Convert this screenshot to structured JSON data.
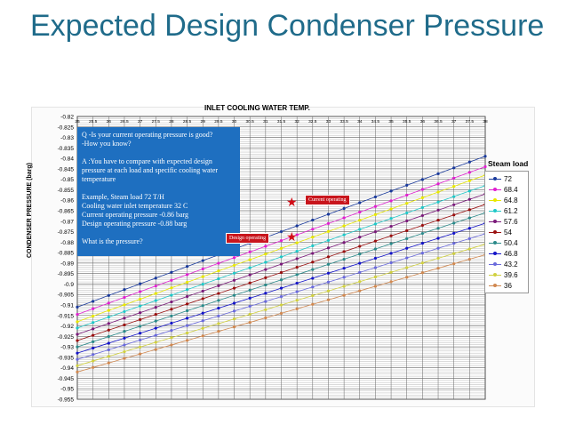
{
  "slide": {
    "title": "Expected Design Condenser Pressure"
  },
  "chart_data": {
    "type": "line",
    "title": "INLET COOLING WATER TEMP.",
    "xlabel": "",
    "ylabel": "CONDENSER PRESSURE (barg)",
    "x": [
      25,
      25.5,
      26,
      26.5,
      27,
      27.5,
      28,
      28.5,
      29,
      29.5,
      30,
      30.5,
      31,
      31.5,
      32,
      32.5,
      33,
      33.5,
      34,
      34.5,
      35,
      35.5,
      36,
      36.5,
      37,
      37.5,
      38
    ],
    "x_tick_labels": [
      "25",
      "25.5",
      "26",
      "26.5",
      "27",
      "27.5",
      "28",
      "28.5",
      "29",
      "29.5",
      "30",
      "30.5",
      "31",
      "31.5",
      "32",
      "32.5",
      "33",
      "33.5",
      "34",
      "34.5",
      "35",
      "35.5",
      "36",
      "36.5",
      "37",
      "37.5",
      "38"
    ],
    "x_axis_position": "top",
    "y_ticks": [
      "-0.82",
      "-0.825",
      "-0.83",
      "-0.835",
      "-0.84",
      "-0.845",
      "-0.85",
      "-0.855",
      "-0.86",
      "-0.865",
      "-0.87",
      "-0.875",
      "-0.88",
      "-0.885",
      "-0.89",
      "-0.895",
      "-0.9",
      "-0.905",
      "-0.91",
      "-0.915",
      "-0.92",
      "-0.925",
      "-0.93",
      "-0.935",
      "-0.94",
      "-0.945",
      "-0.95",
      "-0.955"
    ],
    "ylim": [
      -0.955,
      -0.82
    ],
    "grid": true,
    "legend_title": "Steam load",
    "legend_position": "right",
    "series": [
      {
        "name": "72",
        "color": "#1a3a9c",
        "start": -0.911,
        "end": -0.839
      },
      {
        "name": "68.4",
        "color": "#e020d0",
        "start": -0.9145,
        "end": -0.844
      },
      {
        "name": "64.8",
        "color": "#e8e800",
        "start": -0.918,
        "end": -0.848
      },
      {
        "name": "61.2",
        "color": "#20c8c8",
        "start": -0.921,
        "end": -0.853
      },
      {
        "name": "57.6",
        "color": "#7a1a7a",
        "start": -0.924,
        "end": -0.857
      },
      {
        "name": "54",
        "color": "#9a1010",
        "start": -0.927,
        "end": -0.862
      },
      {
        "name": "50.4",
        "color": "#2a8a8a",
        "start": -0.93,
        "end": -0.866
      },
      {
        "name": "46.8",
        "color": "#1414c8",
        "start": -0.933,
        "end": -0.871
      },
      {
        "name": "43.2",
        "color": "#6a6adc",
        "start": -0.936,
        "end": -0.876
      },
      {
        "name": "39.6",
        "color": "#d0d040",
        "start": -0.939,
        "end": -0.881
      },
      {
        "name": "36",
        "color": "#d08850",
        "start": -0.942,
        "end": -0.886
      }
    ],
    "annotations": [
      {
        "label": "Current operating",
        "x": 32,
        "y": -0.86
      },
      {
        "label": "Design operating",
        "x": 32,
        "y": -0.877
      }
    ]
  },
  "info_box": {
    "lines": [
      "Q -Is your current operating pressure is good?",
      "    -How you know?",
      "",
      "A :You have to compare with expected design  pressure at each load and specific cooling water temperature",
      "",
      "Example, Steam load 72 T/H",
      "Cooling water inlet temperature 32 C",
      "Current operating pressure -0.86 barg",
      "Design operating pressure  -0.88 barg",
      "",
      "What is the pressure?"
    ]
  },
  "colors": {
    "title": "#1f6b8a",
    "box": "#1e6fc0",
    "tag": "#c8151c"
  }
}
